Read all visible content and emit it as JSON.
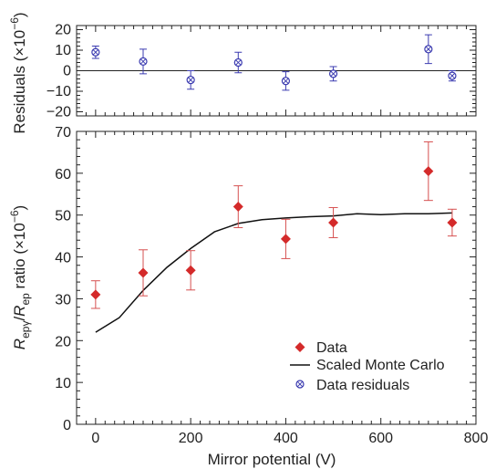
{
  "chart_data": [
    {
      "type": "scatter",
      "panel": "residuals",
      "ylabel_main": "Residuals (×10",
      "ylabel_exp": "−6",
      "ylabel_close": ")",
      "xlim": [
        -40,
        800
      ],
      "ylim": [
        -22,
        22
      ],
      "y_ticks": [
        20,
        10,
        0,
        -10,
        -20
      ],
      "y_tick_labels": [
        "20",
        "10",
        "0",
        "−10",
        "−20"
      ],
      "zero_line": true,
      "series": [
        {
          "marker": "circled-x",
          "color": "#3b3bb0",
          "x": [
            0,
            100,
            200,
            300,
            400,
            500,
            700,
            750
          ],
          "y": [
            9,
            4.5,
            -4.5,
            4,
            -5,
            -1.5,
            10.5,
            -2.5
          ],
          "err": [
            3,
            6,
            4.5,
            5,
            4.5,
            3.5,
            7,
            2.5
          ]
        }
      ]
    },
    {
      "type": "scatter",
      "panel": "ratio",
      "ylabel_parts": [
        "R",
        "epγ",
        "/",
        "R",
        "ep",
        " ratio (×10",
        "−6",
        ")"
      ],
      "xlabel": "Mirror potential (V)",
      "xlim": [
        -40,
        800
      ],
      "ylim": [
        0,
        70
      ],
      "x_ticks": [
        0,
        200,
        400,
        600,
        800
      ],
      "x_tick_labels": [
        "0",
        "200",
        "400",
        "600",
        "800"
      ],
      "y_ticks": [
        0,
        10,
        20,
        30,
        40,
        50,
        60,
        70
      ],
      "y_tick_labels": [
        "0",
        "10",
        "20",
        "30",
        "40",
        "50",
        "60",
        "70"
      ],
      "series": [
        {
          "name": "Data",
          "marker": "diamond",
          "color": "#d42a2a",
          "errcolor": "#d65050",
          "x": [
            0,
            100,
            200,
            300,
            400,
            500,
            700,
            750
          ],
          "y": [
            31,
            36.2,
            36.8,
            52,
            44.3,
            48.2,
            60.5,
            48.2
          ],
          "err": [
            3.3,
            5.5,
            4.7,
            5,
            4.7,
            3.6,
            7,
            3.2
          ]
        },
        {
          "name": "Scaled Monte Carlo",
          "line": true,
          "color": "#111111",
          "x": [
            0,
            50,
            100,
            150,
            200,
            250,
            300,
            350,
            400,
            450,
            500,
            550,
            600,
            650,
            700,
            750
          ],
          "y": [
            22,
            25.5,
            32,
            37.5,
            42,
            46,
            48,
            48.9,
            49.3,
            49.6,
            49.8,
            50.3,
            50.1,
            50.3,
            50.3,
            50.5
          ]
        }
      ],
      "legend": {
        "position": "bottom-right",
        "entries": [
          "Data",
          "Scaled Monte Carlo",
          "Data residuals"
        ]
      }
    }
  ]
}
